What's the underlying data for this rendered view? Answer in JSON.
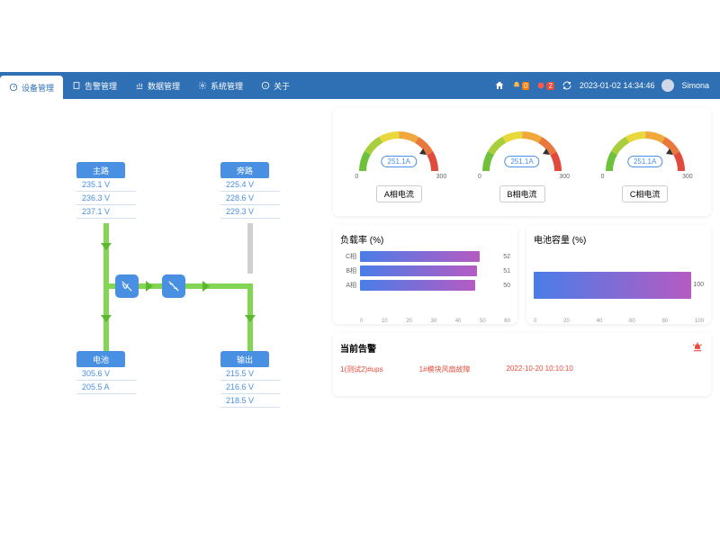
{
  "header": {
    "tabs": [
      {
        "label": "设备管理",
        "active": true
      },
      {
        "label": "告警管理",
        "active": false
      },
      {
        "label": "数据管理",
        "active": false
      },
      {
        "label": "系统管理",
        "active": false
      },
      {
        "label": "关于",
        "active": false
      }
    ],
    "notif1_count": "0",
    "notif2_count": "2",
    "datetime": "2023-01-02 14:34:46",
    "username": "Simona"
  },
  "diagram": {
    "node1": {
      "label": "主路",
      "values": [
        "235.1 V",
        "236.3 V",
        "237.1 V"
      ]
    },
    "node2": {
      "label": "旁路",
      "values": [
        "225.4 V",
        "228.6 V",
        "229.3 V"
      ]
    },
    "node3": {
      "label": "电池",
      "values": [
        "305.6 V",
        "205.5 A"
      ]
    },
    "node4": {
      "label": "输出",
      "values": [
        "215.5 V",
        "216.6 V",
        "218.5 V"
      ]
    },
    "colors": {
      "active": "#82d654",
      "inactive": "#d0d0d0",
      "node_bg": "#4a90e2"
    }
  },
  "gauges": {
    "min": "0",
    "max": "300",
    "g1": {
      "value": "251.1",
      "unit": "A",
      "label": "A相电流"
    },
    "g2": {
      "value": "251.1",
      "unit": "A",
      "label": "B相电流"
    },
    "g3": {
      "value": "251.1",
      "unit": "A",
      "label": "C相电流"
    },
    "arc_colors": [
      "#6ec13b",
      "#a8cf3b",
      "#e8d83b",
      "#f0a83b",
      "#e8783b",
      "#e04b3b"
    ]
  },
  "load_chart": {
    "title": "负载率 (%)",
    "bars": [
      {
        "label": "C相",
        "value": 52
      },
      {
        "label": "B相",
        "value": 51
      },
      {
        "label": "A相",
        "value": 50
      }
    ],
    "xmax": 60,
    "xticks": [
      "0",
      "10",
      "20",
      "30",
      "40",
      "50",
      "60"
    ],
    "gradient": [
      "#4a7de8",
      "#b55bc2"
    ]
  },
  "battery_chart": {
    "title": "电池容量 (%)",
    "value": 100,
    "xmax": 100,
    "xticks": [
      "0",
      "20",
      "40",
      "60",
      "80",
      "100"
    ],
    "gradient": [
      "#4a7de8",
      "#b55bc2"
    ]
  },
  "alarm": {
    "title": "当前告警",
    "row": {
      "c1": "1(测试2)#ups",
      "c2": "1#模块风扇故障",
      "c3": "2022-10-20 10:10:10"
    }
  }
}
